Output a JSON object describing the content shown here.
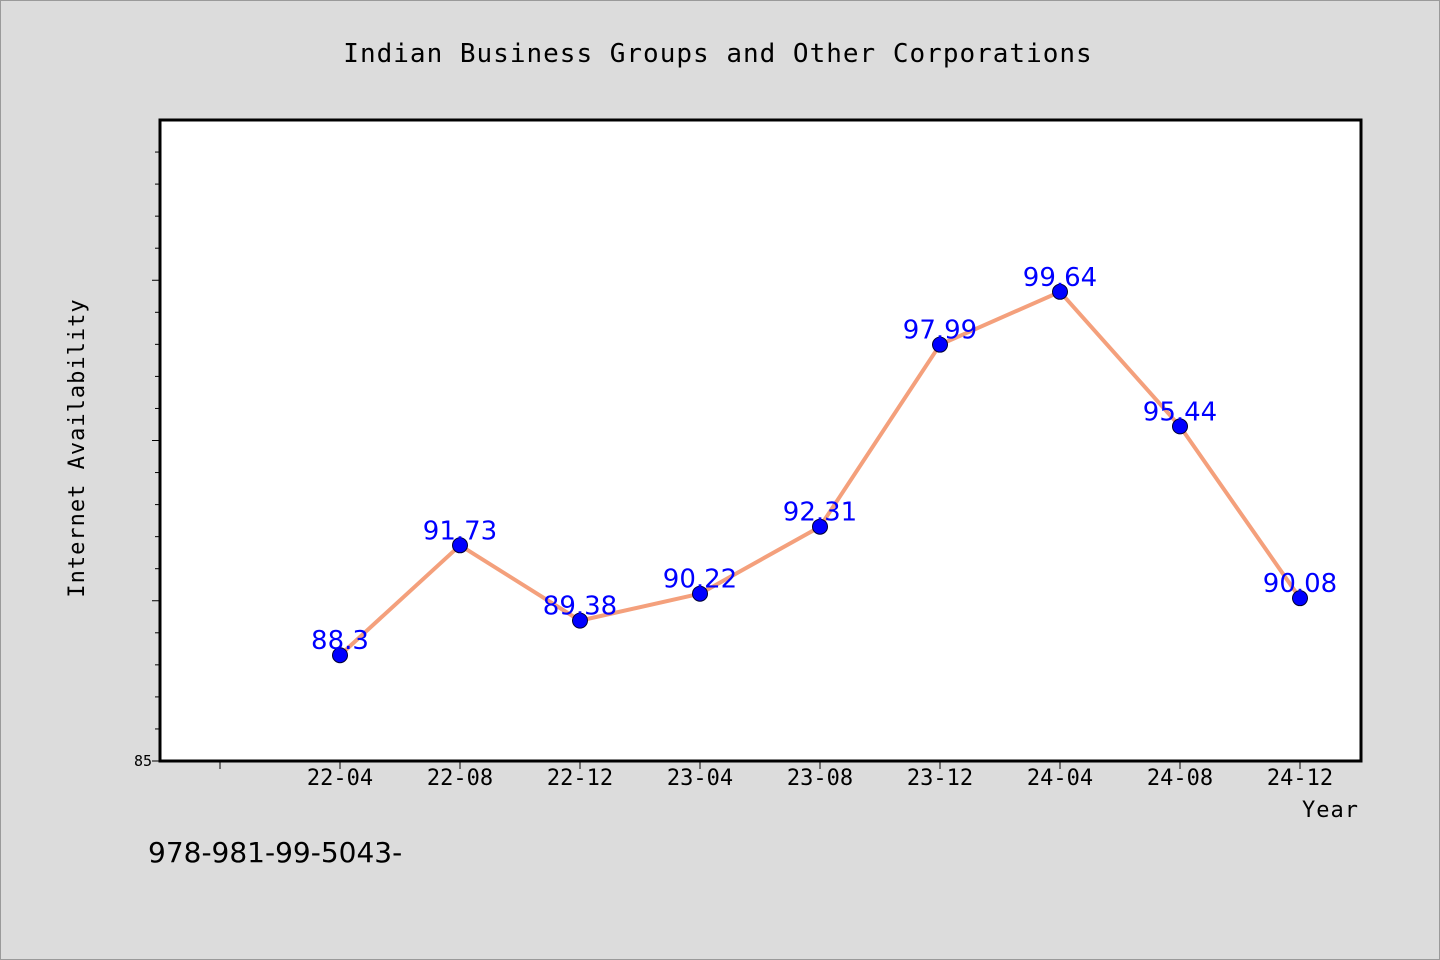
{
  "chart_data": {
    "type": "line",
    "title": "Indian Business Groups and Other Corporations",
    "xlabel": "Year",
    "ylabel": "Internet Availability",
    "categories": [
      "22-04",
      "22-08",
      "22-12",
      "23-04",
      "23-08",
      "23-12",
      "24-04",
      "24-08",
      "24-12"
    ],
    "series": [
      {
        "values": [
          88.3,
          91.73,
          89.38,
          90.22,
          92.31,
          97.99,
          99.64,
          95.44,
          90.08
        ],
        "labels": [
          "88.3",
          "91.73",
          "89.38",
          "90.22",
          "92.31",
          "97.99",
          "99.64",
          "95.44",
          "90.08"
        ],
        "line_color": "#f4a07c",
        "marker_color": "#0000ff"
      }
    ],
    "ylim": [
      85,
      105
    ],
    "y_tick_labels": [
      "85"
    ],
    "grid": false,
    "legend": "none"
  },
  "footer_text": "978-981-99-5043-"
}
